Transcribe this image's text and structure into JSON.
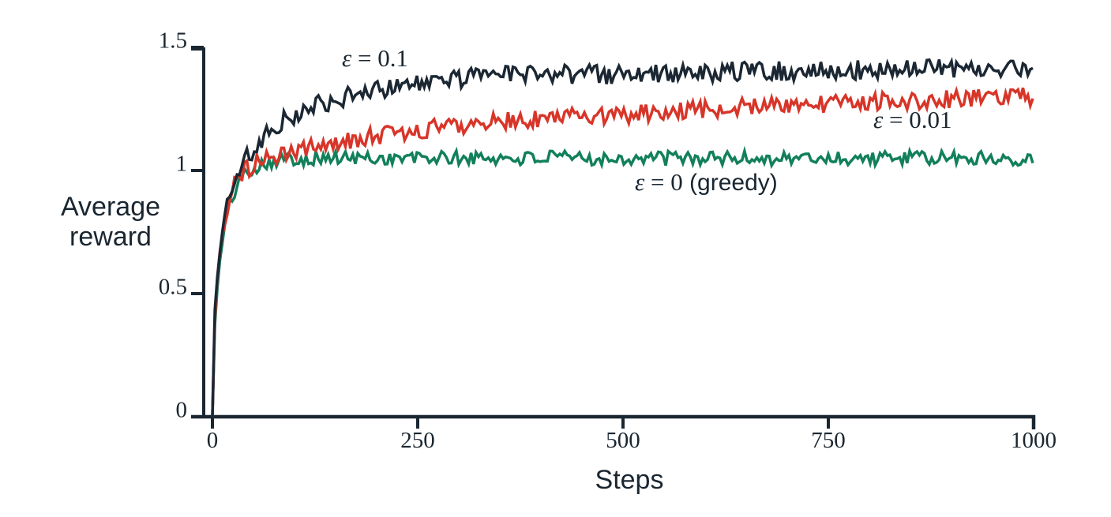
{
  "figure": {
    "background": "#ffffff",
    "axis_color": "#1a2630",
    "text_color": "#1a2630"
  },
  "chart_data": {
    "type": "line",
    "title": "",
    "xlabel": "Steps",
    "ylabel": "Average reward",
    "xlim": [
      0,
      1000
    ],
    "ylim": [
      0,
      1.5
    ],
    "grid": false,
    "legend_position": "inline-annotations",
    "x_ticks": [
      {
        "value": 0,
        "label": "0"
      },
      {
        "value": 250,
        "label": "250"
      },
      {
        "value": 500,
        "label": "500"
      },
      {
        "value": 750,
        "label": "750"
      },
      {
        "value": 1000,
        "label": "1000"
      }
    ],
    "y_ticks": [
      {
        "value": 1.5,
        "label": "1.5"
      },
      {
        "value": 1,
        "label": "1"
      },
      {
        "value": 0.5,
        "label": "0.5"
      },
      {
        "value": 0,
        "label": "0"
      }
    ],
    "series": [
      {
        "name": "eps-0.1",
        "label": "ε = 0.1",
        "color": "#1b2733",
        "noise_amplitude": 0.04,
        "trend": [
          [
            0,
            0
          ],
          [
            1,
            0.22
          ],
          [
            2,
            0.35
          ],
          [
            4,
            0.5
          ],
          [
            6,
            0.57
          ],
          [
            8,
            0.64
          ],
          [
            10,
            0.71
          ],
          [
            13,
            0.78
          ],
          [
            16,
            0.83
          ],
          [
            20,
            0.89
          ],
          [
            25,
            0.94
          ],
          [
            30,
            0.985
          ],
          [
            36,
            1.02
          ],
          [
            44,
            1.065
          ],
          [
            52,
            1.1
          ],
          [
            62,
            1.135
          ],
          [
            75,
            1.175
          ],
          [
            90,
            1.21
          ],
          [
            110,
            1.245
          ],
          [
            130,
            1.27
          ],
          [
            155,
            1.295
          ],
          [
            180,
            1.315
          ],
          [
            210,
            1.335
          ],
          [
            250,
            1.355
          ],
          [
            300,
            1.375
          ],
          [
            360,
            1.385
          ],
          [
            430,
            1.39
          ],
          [
            500,
            1.39
          ],
          [
            600,
            1.4
          ],
          [
            700,
            1.405
          ],
          [
            800,
            1.41
          ],
          [
            900,
            1.415
          ],
          [
            1000,
            1.42
          ]
        ]
      },
      {
        "name": "eps-0.01",
        "label": "ε = 0.01",
        "color": "#d83529",
        "noise_amplitude": 0.037,
        "trend": [
          [
            0,
            0
          ],
          [
            1,
            0.2
          ],
          [
            2,
            0.33
          ],
          [
            4,
            0.47
          ],
          [
            6,
            0.55
          ],
          [
            8,
            0.62
          ],
          [
            10,
            0.69
          ],
          [
            13,
            0.76
          ],
          [
            16,
            0.81
          ],
          [
            20,
            0.87
          ],
          [
            25,
            0.92
          ],
          [
            30,
            0.965
          ],
          [
            36,
            0.99
          ],
          [
            44,
            1.01
          ],
          [
            52,
            1.025
          ],
          [
            62,
            1.04
          ],
          [
            75,
            1.055
          ],
          [
            90,
            1.07
          ],
          [
            110,
            1.085
          ],
          [
            130,
            1.1
          ],
          [
            155,
            1.115
          ],
          [
            180,
            1.13
          ],
          [
            210,
            1.145
          ],
          [
            250,
            1.165
          ],
          [
            300,
            1.185
          ],
          [
            360,
            1.2
          ],
          [
            430,
            1.215
          ],
          [
            500,
            1.225
          ],
          [
            580,
            1.245
          ],
          [
            660,
            1.26
          ],
          [
            750,
            1.272
          ],
          [
            850,
            1.285
          ],
          [
            1000,
            1.3
          ]
        ]
      },
      {
        "name": "greedy",
        "label": "ε = 0 (greedy)",
        "color": "#12805a",
        "noise_amplitude": 0.03,
        "trend": [
          [
            0,
            0
          ],
          [
            1,
            0.18
          ],
          [
            2,
            0.3
          ],
          [
            4,
            0.44
          ],
          [
            6,
            0.52
          ],
          [
            8,
            0.6
          ],
          [
            10,
            0.66
          ],
          [
            13,
            0.73
          ],
          [
            16,
            0.79
          ],
          [
            20,
            0.85
          ],
          [
            25,
            0.9
          ],
          [
            30,
            0.94
          ],
          [
            36,
            0.975
          ],
          [
            44,
            1.0
          ],
          [
            52,
            1.015
          ],
          [
            62,
            1.03
          ],
          [
            80,
            1.045
          ],
          [
            110,
            1.05
          ],
          [
            200,
            1.05
          ],
          [
            400,
            1.05
          ],
          [
            700,
            1.05
          ],
          [
            1000,
            1.05
          ]
        ]
      }
    ]
  },
  "annotations": [
    {
      "eps": "ε",
      "rest": " = 0.1",
      "suffix": ""
    },
    {
      "eps": "ε",
      "rest": " = 0.01",
      "suffix": ""
    },
    {
      "eps": "ε",
      "rest": " = 0",
      "suffix": " (greedy)"
    }
  ]
}
